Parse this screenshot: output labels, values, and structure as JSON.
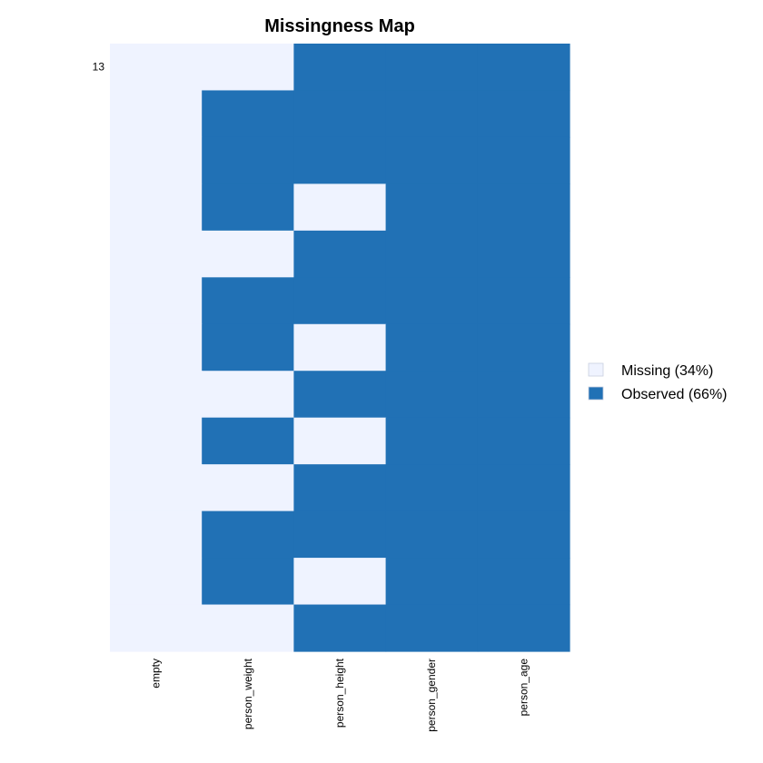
{
  "chart_data": {
    "type": "heatmap",
    "title": "Missingness Map",
    "columns": [
      "empty",
      "person_weight",
      "person_height",
      "person_gender",
      "person_age"
    ],
    "row_labels": [
      "13",
      "",
      "",
      "",
      "",
      "",
      "",
      "",
      "",
      "",
      "",
      "",
      ""
    ],
    "status": [
      [
        0,
        0,
        1,
        1,
        1
      ],
      [
        0,
        1,
        1,
        1,
        1
      ],
      [
        0,
        1,
        1,
        1,
        1
      ],
      [
        0,
        1,
        0,
        1,
        1
      ],
      [
        0,
        0,
        1,
        1,
        1
      ],
      [
        0,
        1,
        1,
        1,
        1
      ],
      [
        0,
        1,
        0,
        1,
        1
      ],
      [
        0,
        0,
        1,
        1,
        1
      ],
      [
        0,
        1,
        0,
        1,
        1
      ],
      [
        0,
        0,
        1,
        1,
        1
      ],
      [
        0,
        1,
        1,
        1,
        1
      ],
      [
        0,
        1,
        0,
        1,
        1
      ],
      [
        0,
        0,
        1,
        1,
        1
      ]
    ],
    "legend": [
      {
        "label": "Missing (34%)",
        "color": "#eff3ff"
      },
      {
        "label": "Observed (66%)",
        "color": "#2171b5"
      }
    ],
    "legend_position": "right"
  }
}
